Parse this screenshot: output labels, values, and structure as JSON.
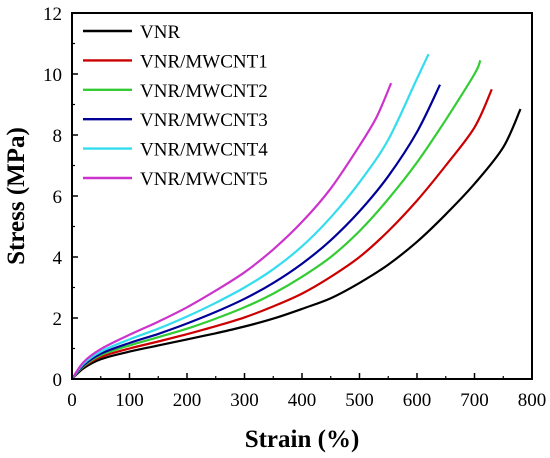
{
  "chart_data": {
    "type": "line",
    "title": "",
    "xlabel": "Strain (%)",
    "ylabel": "Stress (MPa)",
    "xlim": [
      0,
      800
    ],
    "ylim": [
      0,
      12
    ],
    "xticks": [
      0,
      100,
      200,
      300,
      400,
      500,
      600,
      700,
      800
    ],
    "yticks": [
      0,
      2,
      4,
      6,
      8,
      10,
      12
    ],
    "grid": false,
    "legend_position": "top-left",
    "series": [
      {
        "name": "VNR",
        "color": "#000000",
        "points": [
          [
            0,
            0
          ],
          [
            20,
            0.35
          ],
          [
            50,
            0.65
          ],
          [
            100,
            0.9
          ],
          [
            150,
            1.1
          ],
          [
            200,
            1.3
          ],
          [
            250,
            1.5
          ],
          [
            300,
            1.72
          ],
          [
            350,
            1.98
          ],
          [
            400,
            2.3
          ],
          [
            450,
            2.65
          ],
          [
            500,
            3.15
          ],
          [
            550,
            3.75
          ],
          [
            600,
            4.5
          ],
          [
            650,
            5.4
          ],
          [
            700,
            6.4
          ],
          [
            750,
            7.6
          ],
          [
            780,
            8.85
          ]
        ]
      },
      {
        "name": "VNR/MWCNT1",
        "color": "#cc0000",
        "points": [
          [
            0,
            0
          ],
          [
            20,
            0.4
          ],
          [
            50,
            0.72
          ],
          [
            100,
            1.0
          ],
          [
            150,
            1.23
          ],
          [
            200,
            1.47
          ],
          [
            250,
            1.73
          ],
          [
            300,
            2.02
          ],
          [
            350,
            2.38
          ],
          [
            400,
            2.8
          ],
          [
            450,
            3.35
          ],
          [
            500,
            4.0
          ],
          [
            550,
            4.85
          ],
          [
            600,
            5.85
          ],
          [
            650,
            7.0
          ],
          [
            700,
            8.25
          ],
          [
            730,
            9.5
          ]
        ]
      },
      {
        "name": "VNR/MWCNT2",
        "color": "#33cc33",
        "points": [
          [
            0,
            0
          ],
          [
            20,
            0.42
          ],
          [
            50,
            0.78
          ],
          [
            100,
            1.1
          ],
          [
            150,
            1.37
          ],
          [
            200,
            1.65
          ],
          [
            250,
            1.98
          ],
          [
            300,
            2.35
          ],
          [
            350,
            2.8
          ],
          [
            400,
            3.35
          ],
          [
            450,
            4.0
          ],
          [
            500,
            4.85
          ],
          [
            550,
            5.9
          ],
          [
            600,
            7.1
          ],
          [
            650,
            8.5
          ],
          [
            700,
            10.0
          ],
          [
            710,
            10.45
          ]
        ]
      },
      {
        "name": "VNR/MWCNT3",
        "color": "#000099",
        "points": [
          [
            0,
            0
          ],
          [
            20,
            0.45
          ],
          [
            50,
            0.83
          ],
          [
            100,
            1.18
          ],
          [
            150,
            1.48
          ],
          [
            200,
            1.82
          ],
          [
            250,
            2.2
          ],
          [
            300,
            2.63
          ],
          [
            350,
            3.15
          ],
          [
            400,
            3.78
          ],
          [
            450,
            4.55
          ],
          [
            500,
            5.5
          ],
          [
            550,
            6.65
          ],
          [
            600,
            8.1
          ],
          [
            640,
            9.65
          ]
        ]
      },
      {
        "name": "VNR/MWCNT4",
        "color": "#33ddee",
        "points": [
          [
            0,
            0
          ],
          [
            20,
            0.5
          ],
          [
            50,
            0.9
          ],
          [
            100,
            1.3
          ],
          [
            150,
            1.65
          ],
          [
            200,
            2.05
          ],
          [
            250,
            2.5
          ],
          [
            300,
            3.0
          ],
          [
            350,
            3.6
          ],
          [
            400,
            4.35
          ],
          [
            450,
            5.3
          ],
          [
            500,
            6.45
          ],
          [
            550,
            7.85
          ],
          [
            600,
            9.85
          ],
          [
            620,
            10.65
          ]
        ]
      },
      {
        "name": "VNR/MWCNT5",
        "color": "#cc33cc",
        "points": [
          [
            0,
            0
          ],
          [
            20,
            0.55
          ],
          [
            50,
            0.98
          ],
          [
            100,
            1.45
          ],
          [
            150,
            1.88
          ],
          [
            200,
            2.35
          ],
          [
            250,
            2.9
          ],
          [
            300,
            3.5
          ],
          [
            350,
            4.25
          ],
          [
            400,
            5.15
          ],
          [
            450,
            6.25
          ],
          [
            500,
            7.65
          ],
          [
            530,
            8.6
          ],
          [
            555,
            9.7
          ]
        ]
      }
    ]
  }
}
